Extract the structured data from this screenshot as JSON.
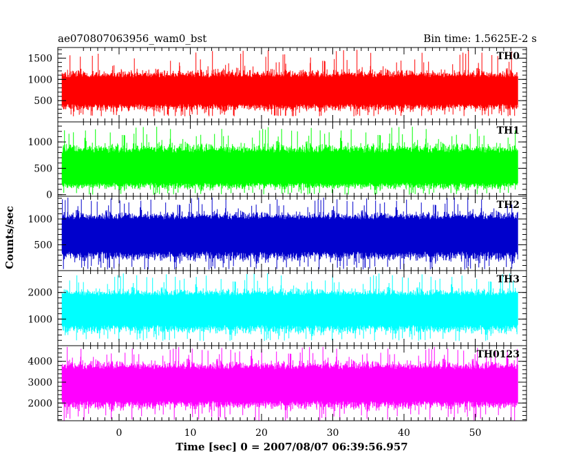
{
  "header": {
    "left": "ae070807063956_wam0_bst",
    "right": "Bin time: 1.5625E-2 s"
  },
  "chart_data": {
    "type": "line",
    "title": "ae070807063956_wam0_bst",
    "subtitle": "Bin time: 1.5625E-2 s",
    "xlabel": "Time [sec] 0 = 2007/08/07 06:39:56.957",
    "ylabel": "Counts/sec",
    "xlim": [
      -8.6,
      57.2
    ],
    "x_ticks": [
      0,
      10,
      20,
      30,
      40,
      50
    ],
    "x_tick_labels": [
      "0",
      "10",
      "20",
      "30",
      "40",
      "50"
    ],
    "data_x_range": [
      -8.0,
      56.0
    ],
    "grid": false,
    "legend": "none",
    "panels": [
      {
        "name": "TH0",
        "color": "#ff0000",
        "ylim": [
          0,
          1750
        ],
        "y_ticks": [
          500,
          1000,
          1500
        ],
        "y_tick_labels": [
          "500",
          "1000",
          "1500"
        ],
        "baseline": 720,
        "typical_low": 180,
        "typical_high": 1300,
        "min_value": 130,
        "max_value": 1700
      },
      {
        "name": "TH1",
        "color": "#00ff00",
        "ylim": [
          -30,
          1380
        ],
        "y_ticks": [
          0,
          500,
          1000
        ],
        "y_tick_labels": [
          "0",
          "500",
          "1000"
        ],
        "baseline": 460,
        "typical_low": 40,
        "typical_high": 1050,
        "min_value": 0,
        "max_value": 1290
      },
      {
        "name": "TH2",
        "color": "#0000cc",
        "ylim": [
          0,
          1440
        ],
        "y_ticks": [
          500,
          1000
        ],
        "y_tick_labels": [
          "500",
          "1000"
        ],
        "baseline": 720,
        "typical_low": 90,
        "typical_high": 1200,
        "min_value": 20,
        "max_value": 1420
      },
      {
        "name": "TH3",
        "color": "#00ffff",
        "ylim": [
          0,
          2820
        ],
        "y_ticks": [
          1000,
          2000
        ],
        "y_tick_labels": [
          "1000",
          "2000"
        ],
        "baseline": 1400,
        "typical_low": 280,
        "typical_high": 2250,
        "min_value": 180,
        "max_value": 2730
      },
      {
        "name": "TH0123",
        "color": "#ff00ff",
        "ylim": [
          1150,
          4750
        ],
        "y_ticks": [
          2000,
          3000,
          4000
        ],
        "y_tick_labels": [
          "2000",
          "3000",
          "4000"
        ],
        "baseline": 2850,
        "typical_low": 1500,
        "typical_high": 4200,
        "min_value": 1150,
        "max_value": 4700
      }
    ]
  }
}
